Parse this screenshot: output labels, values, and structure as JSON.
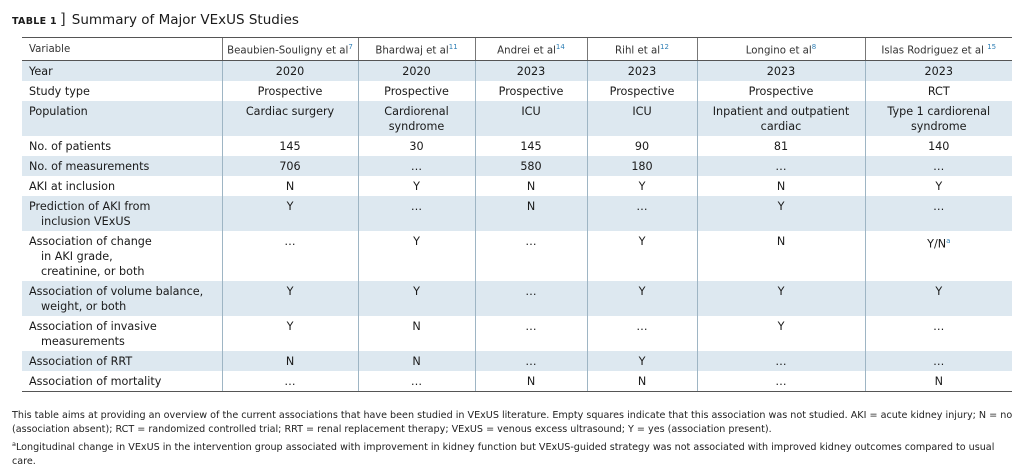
{
  "title": {
    "label": "TABLE 1",
    "bracket": "]",
    "caption": "Summary of Major VExUS Studies"
  },
  "table": {
    "headers": [
      {
        "text": "Variable",
        "sup": ""
      },
      {
        "text": "Beaubien-Souligny et al",
        "sup": "7"
      },
      {
        "text": "Bhardwaj et al",
        "sup": "11"
      },
      {
        "text": "Andrei et al",
        "sup": "14"
      },
      {
        "text": "Rihl et al",
        "sup": "12"
      },
      {
        "text": "Longino et al",
        "sup": "8"
      },
      {
        "text": "Islas Rodriguez et al ",
        "sup": "15"
      }
    ],
    "rows": [
      {
        "shaded": true,
        "label": [
          "Year"
        ],
        "cells": [
          "2020",
          "2020",
          "2023",
          "2023",
          "2023",
          "2023"
        ]
      },
      {
        "shaded": false,
        "label": [
          "Study type"
        ],
        "cells": [
          "Prospective",
          "Prospective",
          "Prospective",
          "Prospective",
          "Prospective",
          "RCT"
        ]
      },
      {
        "shaded": true,
        "label": [
          "Population"
        ],
        "cells": [
          "Cardiac surgery",
          "Cardiorenal syndrome",
          "ICU",
          "ICU",
          "Inpatient and outpatient cardiac",
          "Type 1 cardiorenal syndrome"
        ]
      },
      {
        "shaded": false,
        "label": [
          "No. of patients"
        ],
        "cells": [
          "145",
          "30",
          "145",
          "90",
          "81",
          "140"
        ]
      },
      {
        "shaded": true,
        "label": [
          "No. of measurements"
        ],
        "cells": [
          "706",
          "…",
          "580",
          "180",
          "…",
          "…"
        ]
      },
      {
        "shaded": false,
        "label": [
          "AKI at inclusion"
        ],
        "cells": [
          "N",
          "Y",
          "N",
          "Y",
          "N",
          "Y"
        ]
      },
      {
        "shaded": true,
        "label": [
          "Prediction of AKI from",
          "inclusion VExUS"
        ],
        "cells": [
          "Y",
          "…",
          "N",
          "…",
          "Y",
          "…"
        ]
      },
      {
        "shaded": false,
        "label": [
          "Association of change",
          "in AKI grade,",
          "creatinine, or both"
        ],
        "cells": [
          "…",
          "Y",
          "…",
          "Y",
          "N",
          "Y/N"
        ],
        "sup_cell": 5,
        "sup": "a"
      },
      {
        "shaded": true,
        "label": [
          "Association of volume balance,",
          "weight, or both"
        ],
        "cells": [
          "Y",
          "Y",
          "…",
          "Y",
          "Y",
          "Y"
        ]
      },
      {
        "shaded": false,
        "label": [
          "Association of invasive",
          "measurements"
        ],
        "cells": [
          "Y",
          "N",
          "…",
          "…",
          "Y",
          "…"
        ]
      },
      {
        "shaded": true,
        "label": [
          "Association of RRT"
        ],
        "cells": [
          "N",
          "N",
          "…",
          "Y",
          "…",
          "…"
        ]
      },
      {
        "shaded": false,
        "label": [
          "Association of mortality"
        ],
        "cells": [
          "…",
          "…",
          "N",
          "N",
          "…",
          "N"
        ]
      }
    ]
  },
  "footnotes": {
    "main": "This table aims at providing an overview of the current associations that have been studied in VExUS literature. Empty squares indicate that this association was not studied. AKI = acute kidney injury; N = no (association absent); RCT = randomized controlled trial; RRT = renal replacement therapy; VExUS = venous excess ultrasound; Y = yes (association present).",
    "a_marker": "a",
    "a_text": "Longitudinal change in VExUS in the intervention group associated with improvement in kidney function but VExUS-guided strategy was not associated with improved kidney outcomes compared to usual care."
  },
  "colors": {
    "row_shade": "#dde8f0",
    "reference_link": "#2f7fb5"
  }
}
